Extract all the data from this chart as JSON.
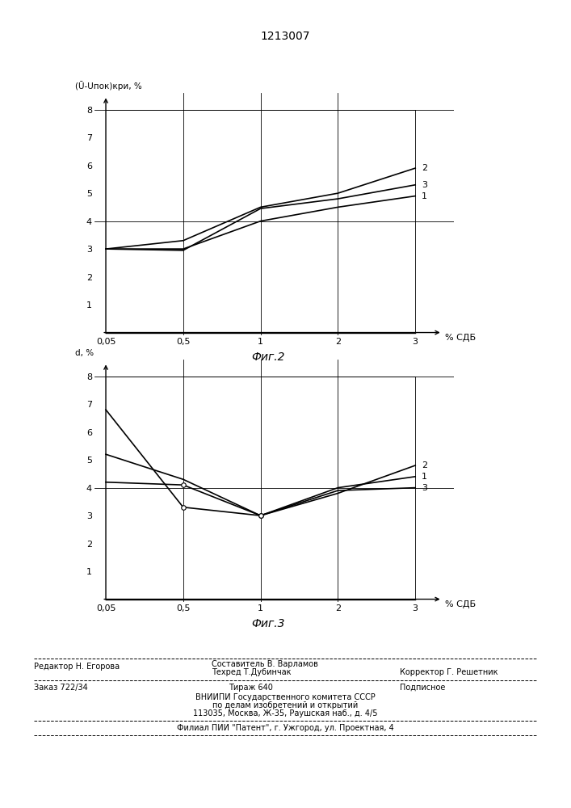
{
  "title": "1213007",
  "fig2_ylabel": "(Ū-Uпок)кри, %",
  "fig3_ylabel": "d, %",
  "xlabel": "% СДБ",
  "fig2_caption": "Фиг.2",
  "fig3_caption": "Фиг.3",
  "x_tick_labels": [
    "0,05",
    "0,5",
    "1",
    "2",
    "3"
  ],
  "y_ticks": [
    1,
    2,
    3,
    4,
    5,
    6,
    7,
    8
  ],
  "fig2_lines": {
    "line1": {
      "y": [
        3.0,
        3.0,
        4.0,
        4.5,
        4.9
      ],
      "label": "1"
    },
    "line2": {
      "y": [
        3.0,
        3.3,
        4.5,
        5.0,
        5.9
      ],
      "label": "2"
    },
    "line3": {
      "y": [
        3.0,
        2.95,
        4.45,
        4.8,
        5.3
      ],
      "label": "3"
    }
  },
  "fig3_lines": {
    "line1": {
      "y": [
        4.2,
        4.1,
        3.0,
        4.0,
        4.4
      ],
      "label": "1"
    },
    "line2": {
      "y": [
        5.2,
        4.3,
        3.0,
        3.8,
        4.8
      ],
      "label": "2"
    },
    "line3": {
      "y": [
        6.8,
        3.3,
        3.0,
        3.9,
        4.0
      ],
      "label": "3"
    }
  },
  "bg_color": "#ffffff"
}
